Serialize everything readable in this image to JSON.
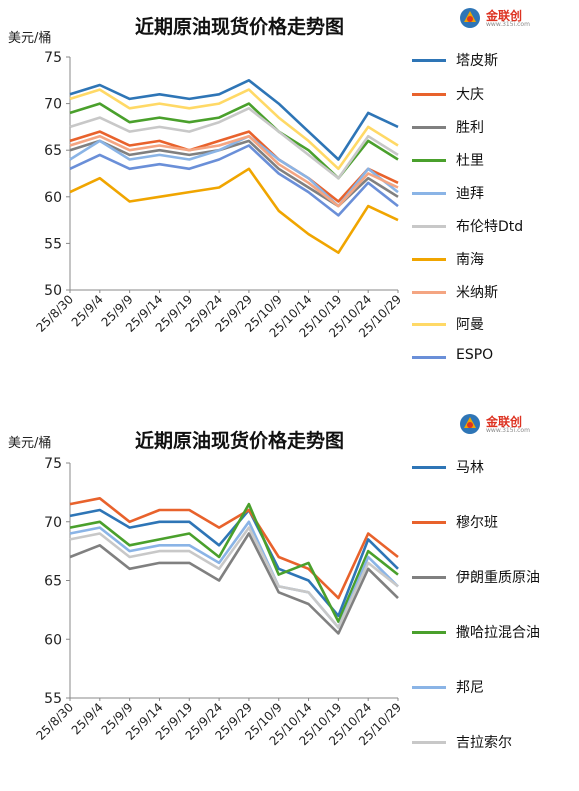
{
  "chart_data": [
    {
      "type": "line",
      "title": "近期原油现货价格走势图",
      "ylabel": "美元/桶",
      "xlabel": "",
      "ylim": [
        50,
        75
      ],
      "yticks": [
        50,
        55,
        60,
        65,
        70,
        75
      ],
      "categories": [
        "25/8/30",
        "25/9/4",
        "25/9/9",
        "25/9/14",
        "25/9/19",
        "25/9/24",
        "25/9/29",
        "25/10/9",
        "25/10/14",
        "25/10/19",
        "25/10/24",
        "25/10/29"
      ],
      "grid": false,
      "legend_position": "right",
      "series": [
        {
          "name": "塔皮斯",
          "color": "#2e75b6",
          "values": [
            71.0,
            72.0,
            70.5,
            71.0,
            70.5,
            71.0,
            72.5,
            70.0,
            67.0,
            64.0,
            69.0,
            67.5
          ]
        },
        {
          "name": "大庆",
          "color": "#e8622c",
          "values": [
            66.0,
            67.0,
            65.5,
            66.0,
            65.0,
            66.0,
            67.0,
            64.0,
            62.0,
            59.5,
            63.0,
            61.5
          ]
        },
        {
          "name": "胜利",
          "color": "#808080",
          "values": [
            65.0,
            66.0,
            64.5,
            65.0,
            64.5,
            65.0,
            66.0,
            63.0,
            61.0,
            59.0,
            62.0,
            60.0
          ]
        },
        {
          "name": "杜里",
          "color": "#4aa02c",
          "values": [
            69.0,
            70.0,
            68.0,
            68.5,
            68.0,
            68.5,
            70.0,
            67.0,
            65.0,
            62.0,
            66.0,
            64.0
          ]
        },
        {
          "name": "迪拜",
          "color": "#8ab4e6",
          "values": [
            64.0,
            66.0,
            64.0,
            64.5,
            64.0,
            65.0,
            66.5,
            64.0,
            62.0,
            59.0,
            63.0,
            60.5
          ]
        },
        {
          "name": "布伦特Dtd",
          "color": "#c8c8c8",
          "values": [
            67.5,
            68.5,
            67.0,
            67.5,
            67.0,
            68.0,
            69.5,
            67.0,
            64.5,
            62.0,
            66.5,
            64.5
          ]
        },
        {
          "name": "南海",
          "color": "#f0a500",
          "values": [
            60.5,
            62.0,
            59.5,
            60.0,
            60.5,
            61.0,
            63.0,
            58.5,
            56.0,
            54.0,
            59.0,
            57.5
          ]
        },
        {
          "name": "米纳斯",
          "color": "#f4a582",
          "values": [
            65.5,
            66.5,
            65.0,
            65.5,
            65.0,
            65.5,
            66.5,
            63.5,
            61.5,
            59.0,
            62.5,
            61.0
          ]
        },
        {
          "name": "阿曼",
          "color": "#ffd966",
          "values": [
            70.5,
            71.5,
            69.5,
            70.0,
            69.5,
            70.0,
            71.5,
            68.5,
            66.0,
            63.0,
            67.5,
            65.5
          ]
        },
        {
          "name": "ESPO",
          "color": "#6a8fd8",
          "values": [
            63.0,
            64.5,
            63.0,
            63.5,
            63.0,
            64.0,
            65.5,
            62.5,
            60.5,
            58.0,
            61.5,
            59.0
          ]
        }
      ]
    },
    {
      "type": "line",
      "title": "近期原油现货价格走势图",
      "ylabel": "美元/桶",
      "xlabel": "",
      "ylim": [
        55,
        75
      ],
      "yticks": [
        55,
        60,
        65,
        70,
        75
      ],
      "categories": [
        "25/8/30",
        "25/9/4",
        "25/9/9",
        "25/9/14",
        "25/9/19",
        "25/9/24",
        "25/9/29",
        "25/10/9",
        "25/10/14",
        "25/10/19",
        "25/10/24",
        "25/10/29"
      ],
      "grid": false,
      "legend_position": "right",
      "series": [
        {
          "name": "马林",
          "color": "#2e75b6",
          "values": [
            70.5,
            71.0,
            69.5,
            70.0,
            70.0,
            68.0,
            71.0,
            66.0,
            65.0,
            62.0,
            68.5,
            66.0
          ]
        },
        {
          "name": "穆尔班",
          "color": "#e8622c",
          "values": [
            71.5,
            72.0,
            70.0,
            71.0,
            71.0,
            69.5,
            71.0,
            67.0,
            66.0,
            63.5,
            69.0,
            67.0
          ]
        },
        {
          "name": "伊朗重质原油",
          "color": "#808080",
          "values": [
            67.0,
            68.0,
            66.0,
            66.5,
            66.5,
            65.0,
            69.0,
            64.0,
            63.0,
            60.5,
            66.0,
            63.5
          ]
        },
        {
          "name": "撒哈拉混合油",
          "color": "#4aa02c",
          "values": [
            69.5,
            70.0,
            68.0,
            68.5,
            69.0,
            67.0,
            71.5,
            65.5,
            66.5,
            61.5,
            67.5,
            65.5
          ]
        },
        {
          "name": "邦尼",
          "color": "#8ab4e6",
          "values": [
            69.0,
            69.5,
            67.5,
            68.0,
            68.0,
            66.5,
            70.0,
            64.5,
            64.0,
            61.0,
            67.0,
            64.5
          ]
        },
        {
          "name": "吉拉索尔",
          "color": "#c8c8c8",
          "values": [
            68.5,
            69.0,
            67.0,
            67.5,
            67.5,
            66.0,
            69.5,
            64.5,
            64.0,
            61.0,
            66.5,
            64.5
          ]
        }
      ]
    }
  ],
  "logo": {
    "text": "金联创",
    "sub": "www.315i.com"
  }
}
